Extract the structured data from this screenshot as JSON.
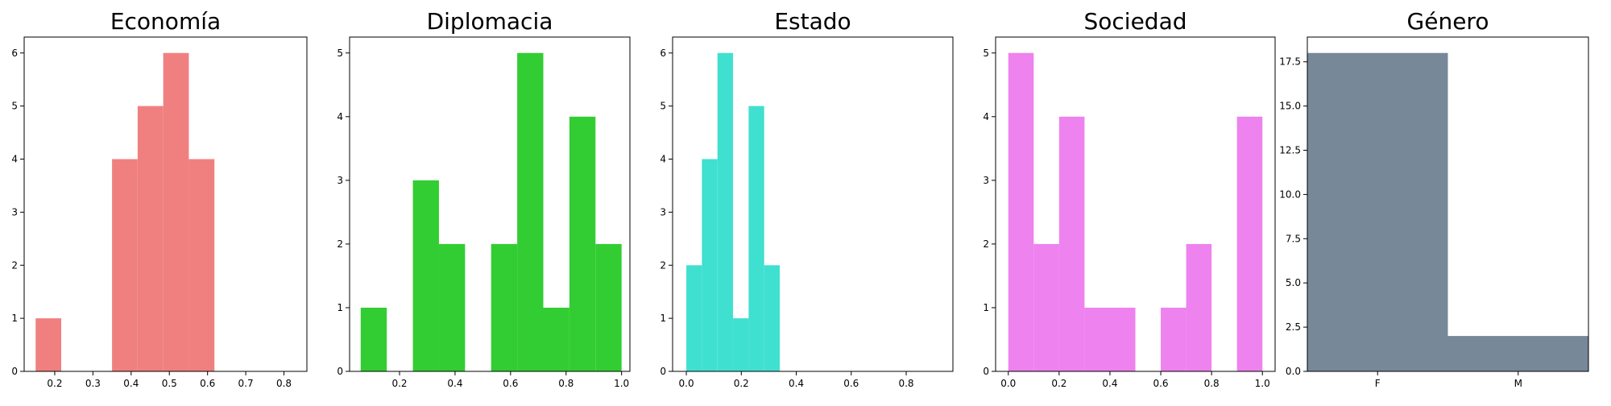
{
  "chart_data": [
    {
      "type": "bar",
      "title": "Economía",
      "color": "#f08080",
      "xlim": [
        0.12,
        0.86
      ],
      "ylim": [
        0,
        6.3
      ],
      "xticks": [
        0.2,
        0.3,
        0.4,
        0.5,
        0.6,
        0.7,
        0.8
      ],
      "xtick_labels": [
        "0.2",
        "0.3",
        "0.4",
        "0.5",
        "0.6",
        "0.7",
        "0.8"
      ],
      "yticks": [
        0,
        1,
        2,
        3,
        4,
        5,
        6
      ],
      "ytick_labels": [
        "0",
        "1",
        "2",
        "3",
        "4",
        "5",
        "6"
      ],
      "bins": [
        {
          "x0": 0.15,
          "x1": 0.217,
          "value": 1
        },
        {
          "x0": 0.35,
          "x1": 0.417,
          "value": 4
        },
        {
          "x0": 0.417,
          "x1": 0.484,
          "value": 5
        },
        {
          "x0": 0.484,
          "x1": 0.551,
          "value": 6
        },
        {
          "x0": 0.551,
          "x1": 0.618,
          "value": 4
        }
      ]
    },
    {
      "type": "bar",
      "title": "Diplomacia",
      "color": "#32cd32",
      "xlim": [
        0.02,
        1.03
      ],
      "ylim": [
        0,
        5.25
      ],
      "xticks": [
        0.2,
        0.4,
        0.6,
        0.8,
        1.0
      ],
      "xtick_labels": [
        "0.2",
        "0.4",
        "0.6",
        "0.8",
        "1.0"
      ],
      "yticks": [
        0,
        1,
        2,
        3,
        4,
        5
      ],
      "ytick_labels": [
        "0",
        "1",
        "2",
        "3",
        "4",
        "5"
      ],
      "bins": [
        {
          "x0": 0.06,
          "x1": 0.154,
          "value": 1
        },
        {
          "x0": 0.248,
          "x1": 0.342,
          "value": 3
        },
        {
          "x0": 0.342,
          "x1": 0.436,
          "value": 2
        },
        {
          "x0": 0.53,
          "x1": 0.624,
          "value": 2
        },
        {
          "x0": 0.624,
          "x1": 0.718,
          "value": 5
        },
        {
          "x0": 0.718,
          "x1": 0.812,
          "value": 1
        },
        {
          "x0": 0.812,
          "x1": 0.906,
          "value": 4
        },
        {
          "x0": 0.906,
          "x1": 1.0,
          "value": 2
        }
      ]
    },
    {
      "type": "bar",
      "title": "Estado",
      "color": "#40e0d0",
      "xlim": [
        -0.05,
        0.97
      ],
      "ylim": [
        0,
        6.3
      ],
      "xticks": [
        0.0,
        0.2,
        0.4,
        0.6,
        0.8
      ],
      "xtick_labels": [
        "0.0",
        "0.2",
        "0.4",
        "0.6",
        "0.8"
      ],
      "yticks": [
        0,
        1,
        2,
        3,
        4,
        5,
        6
      ],
      "ytick_labels": [
        "0",
        "1",
        "2",
        "3",
        "4",
        "5",
        "6"
      ],
      "bins": [
        {
          "x0": 0.0,
          "x1": 0.0567,
          "value": 2
        },
        {
          "x0": 0.0567,
          "x1": 0.1133,
          "value": 4
        },
        {
          "x0": 0.1133,
          "x1": 0.17,
          "value": 6
        },
        {
          "x0": 0.17,
          "x1": 0.2267,
          "value": 1
        },
        {
          "x0": 0.2267,
          "x1": 0.2833,
          "value": 5
        },
        {
          "x0": 0.2833,
          "x1": 0.34,
          "value": 2
        }
      ]
    },
    {
      "type": "bar",
      "title": "Sociedad",
      "color": "#ee82ee",
      "xlim": [
        -0.05,
        1.05
      ],
      "ylim": [
        0,
        5.25
      ],
      "xticks": [
        0.0,
        0.2,
        0.4,
        0.6,
        0.8,
        1.0
      ],
      "xtick_labels": [
        "0.0",
        "0.2",
        "0.4",
        "0.6",
        "0.8",
        "1.0"
      ],
      "yticks": [
        0,
        1,
        2,
        3,
        4,
        5
      ],
      "ytick_labels": [
        "0",
        "1",
        "2",
        "3",
        "4",
        "5"
      ],
      "bins": [
        {
          "x0": 0.0,
          "x1": 0.1,
          "value": 5
        },
        {
          "x0": 0.1,
          "x1": 0.2,
          "value": 2
        },
        {
          "x0": 0.2,
          "x1": 0.3,
          "value": 4
        },
        {
          "x0": 0.3,
          "x1": 0.4,
          "value": 1
        },
        {
          "x0": 0.4,
          "x1": 0.5,
          "value": 1
        },
        {
          "x0": 0.6,
          "x1": 0.7,
          "value": 1
        },
        {
          "x0": 0.7,
          "x1": 0.8,
          "value": 2
        },
        {
          "x0": 0.9,
          "x1": 1.0,
          "value": 4
        }
      ]
    },
    {
      "type": "bar",
      "title": "Género",
      "color": "#778899",
      "xlim": [
        -0.5,
        1.5
      ],
      "ylim": [
        0,
        18.9
      ],
      "xticks": [
        0,
        1
      ],
      "xtick_labels": [
        "F",
        "M"
      ],
      "yticks": [
        0,
        2.5,
        5.0,
        7.5,
        10.0,
        12.5,
        15.0,
        17.5
      ],
      "ytick_labels": [
        "0.0",
        "2.5",
        "5.0",
        "7.5",
        "10.0",
        "12.5",
        "15.0",
        "17.5"
      ],
      "bins": [
        {
          "x0": -0.5,
          "x1": 0.5,
          "value": 18,
          "category": "F"
        },
        {
          "x0": 0.5,
          "x1": 1.5,
          "value": 2,
          "category": "M"
        }
      ]
    }
  ]
}
